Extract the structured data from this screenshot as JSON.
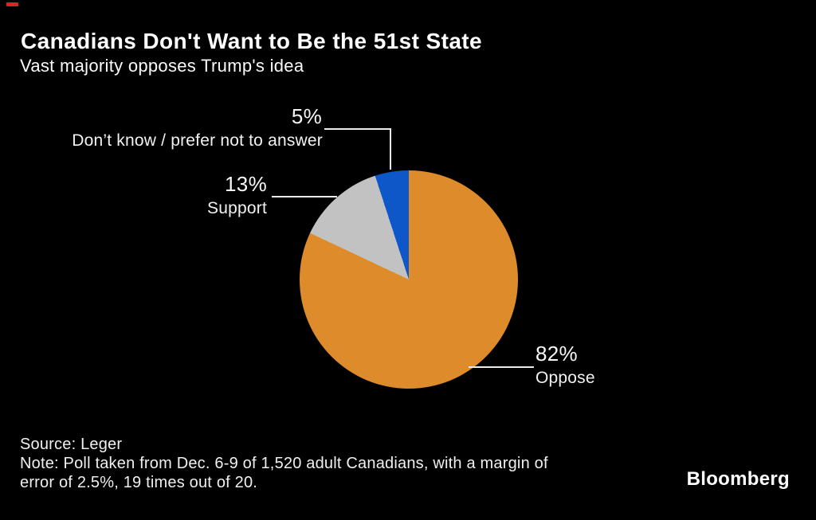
{
  "page": {
    "background": "#000000"
  },
  "header": {
    "title": "Canadians Don't Want to Be the 51st State",
    "subtitle": "Vast majority opposes Trump's idea"
  },
  "chart_data": {
    "type": "pie",
    "title": "Canadians Don't Want to Be the 51st State",
    "subtitle": "Vast majority opposes Trump's idea",
    "unit": "percent",
    "start_angle_deg": 0,
    "direction": "clockwise",
    "slices": [
      {
        "label": "Oppose",
        "value": 82,
        "display": "82%",
        "color": "#de8c2b"
      },
      {
        "label": "Support",
        "value": 13,
        "display": "13%",
        "color": "#c2c2c2"
      },
      {
        "label": "Don’t know / prefer not to answer",
        "value": 5,
        "display": "5%",
        "color": "#0e57c8"
      }
    ],
    "legend_position": "callout-labels",
    "source": "Source: Leger",
    "note": "Note: Poll taken from Dec. 6-9 of 1,520 adult Canadians, with a margin of error of 2.5%, 19 times out of 20."
  },
  "footer": {
    "source": "Source: Leger",
    "note_lines": [
      "Note: Poll taken from Dec. 6-9 of 1,520 adult Canadians, with a margin of",
      "error of 2.5%, 19 times out of 20."
    ],
    "brand": "Bloomberg"
  }
}
